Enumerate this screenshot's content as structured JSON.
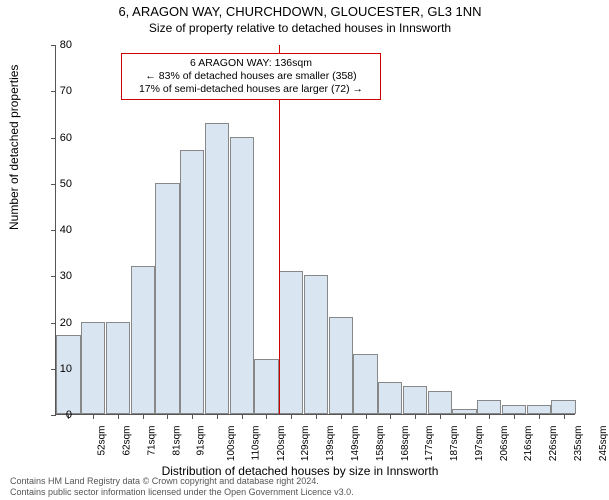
{
  "chart": {
    "type": "histogram",
    "title_line1": "6, ARAGON WAY, CHURCHDOWN, GLOUCESTER, GL3 1NN",
    "title_line2": "Size of property relative to detached houses in Innsworth",
    "ylabel": "Number of detached properties",
    "xlabel": "Distribution of detached houses by size in Innsworth",
    "ylim": [
      0,
      80
    ],
    "ytick_step": 10,
    "bars": [
      {
        "label": "52sqm",
        "value": 17
      },
      {
        "label": "62sqm",
        "value": 20
      },
      {
        "label": "71sqm",
        "value": 20
      },
      {
        "label": "81sqm",
        "value": 32
      },
      {
        "label": "91sqm",
        "value": 50
      },
      {
        "label": "100sqm",
        "value": 57
      },
      {
        "label": "110sqm",
        "value": 63
      },
      {
        "label": "120sqm",
        "value": 60
      },
      {
        "label": "129sqm",
        "value": 12
      },
      {
        "label": "139sqm",
        "value": 31
      },
      {
        "label": "149sqm",
        "value": 30
      },
      {
        "label": "158sqm",
        "value": 21
      },
      {
        "label": "168sqm",
        "value": 13
      },
      {
        "label": "177sqm",
        "value": 7
      },
      {
        "label": "187sqm",
        "value": 6
      },
      {
        "label": "197sqm",
        "value": 5
      },
      {
        "label": "206sqm",
        "value": 1
      },
      {
        "label": "216sqm",
        "value": 3
      },
      {
        "label": "226sqm",
        "value": 2
      },
      {
        "label": "235sqm",
        "value": 2
      },
      {
        "label": "245sqm",
        "value": 3
      }
    ],
    "bar_fill": "#dae5f2",
    "bar_border": "#888888",
    "axis_color": "#555555",
    "background_color": "#ffffff",
    "reference_line": {
      "after_bar_index": 8,
      "color": "#d00000"
    },
    "callout": {
      "line1": "6 ARAGON WAY: 136sqm",
      "line2": "← 83% of detached houses are smaller (358)",
      "line3": "17% of semi-detached houses are larger (72) →",
      "border_color": "#d00000"
    }
  },
  "footer": {
    "line1": "Contains HM Land Registry data © Crown copyright and database right 2024.",
    "line2": "Contains public sector information licensed under the Open Government Licence v3.0."
  }
}
